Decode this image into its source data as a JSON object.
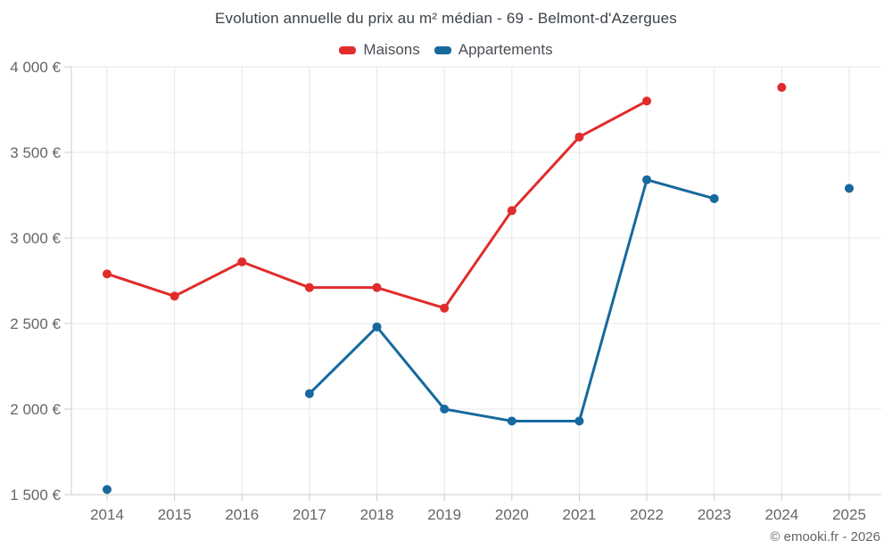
{
  "footer": {
    "copyright": "© emooki.fr - 2026"
  },
  "chart_data": {
    "type": "line",
    "title": "Evolution annuelle du prix au m² médian - 69 - Belmont-d'Azergues",
    "x": [
      2014,
      2015,
      2016,
      2017,
      2018,
      2019,
      2020,
      2021,
      2022,
      2023,
      2024,
      2025
    ],
    "series": [
      {
        "name": "Maisons",
        "color": "#e02c2c",
        "values": [
          2790,
          2660,
          2860,
          2710,
          2710,
          2590,
          3160,
          3590,
          3800,
          null,
          3880,
          null
        ]
      },
      {
        "name": "Appartements",
        "color": "#17699e",
        "values": [
          1530,
          null,
          null,
          2090,
          2480,
          2000,
          1930,
          1930,
          3340,
          3230,
          null,
          3290
        ]
      }
    ],
    "xlabel": "",
    "ylabel": "",
    "ylim": [
      1500,
      4000
    ],
    "yticks": [
      1500,
      2000,
      2500,
      3000,
      3500,
      4000
    ],
    "ytick_suffix": " €",
    "grid": true,
    "legend_position": "top",
    "colors": {
      "grid": "#e7e7e7",
      "axis": "#cccccc",
      "tick_text": "#666666",
      "title_text": "#3b4147",
      "legend_text": "#4a4f54"
    }
  }
}
